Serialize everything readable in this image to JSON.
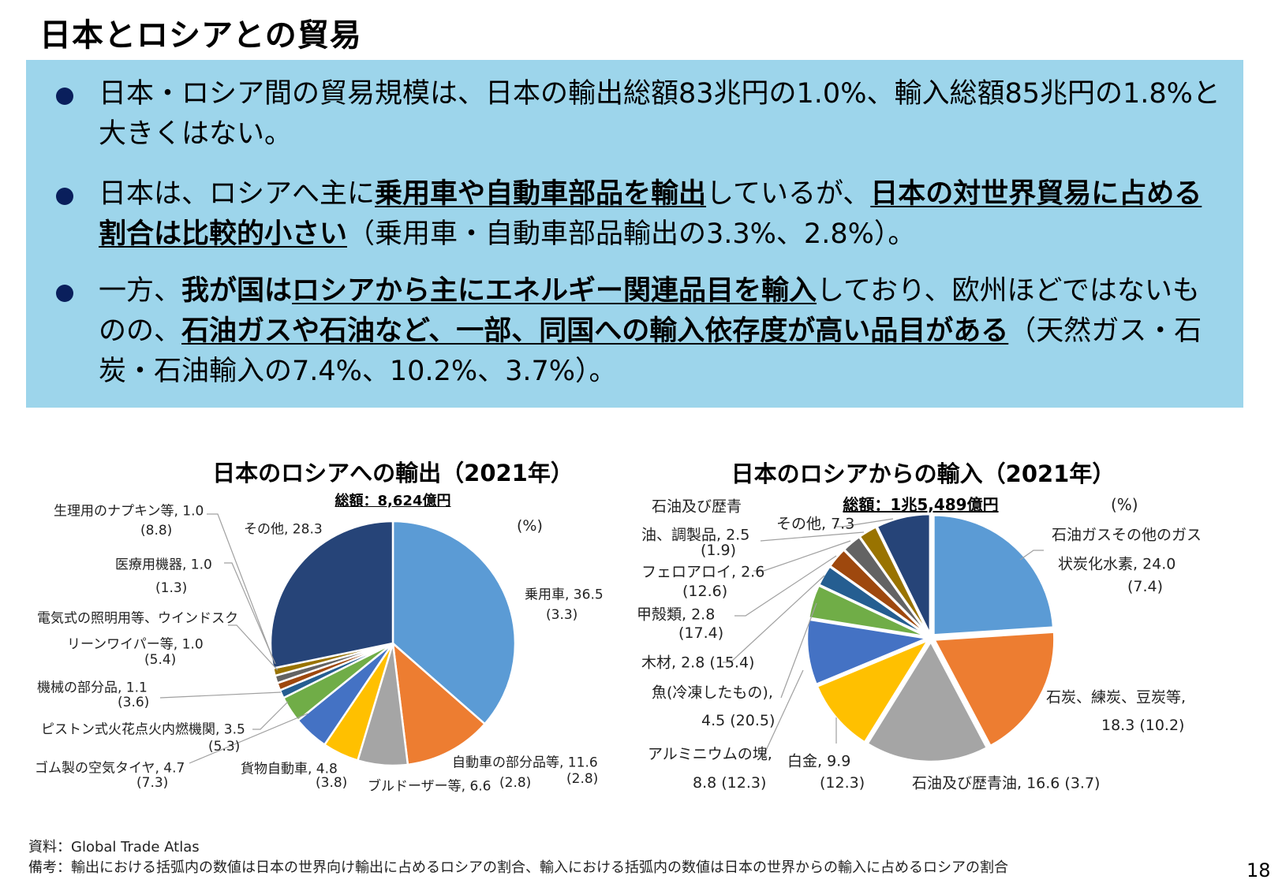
{
  "page_title": "日本とロシアとの貿易",
  "page_number": "18",
  "bullets": [
    {
      "segments": [
        {
          "text": "日本・ロシア間の貿易規模は、日本の輸出総額83兆円の1.0%、輸入総額85兆円の1.8%と大きくはない。",
          "bold": false,
          "underline": false
        }
      ]
    },
    {
      "segments": [
        {
          "text": "日本は、ロシアへ主に",
          "bold": false,
          "underline": false
        },
        {
          "text": "乗用車や自動車部品を輸出",
          "bold": true,
          "underline": true
        },
        {
          "text": "しているが、",
          "bold": false,
          "underline": false
        },
        {
          "text": "日本の対世界貿易に占める割合は比較的小さい",
          "bold": true,
          "underline": true
        },
        {
          "text": "（乗用車・自動車部品輸出の3.3%、2.8%）。",
          "bold": false,
          "underline": false
        }
      ]
    },
    {
      "segments": [
        {
          "text": "一方、",
          "bold": false,
          "underline": false
        },
        {
          "text": "我が国は",
          "bold": true,
          "underline": false
        },
        {
          "text": "ロシアから主にエネルギー関連品目を輸入",
          "bold": true,
          "underline": true
        },
        {
          "text": "しており、欧州ほどではないものの、",
          "bold": false,
          "underline": false
        },
        {
          "text": "石油ガスや石油など、一部、同国への輸入依存度が高い品目がある",
          "bold": true,
          "underline": true
        },
        {
          "text": "（天然ガス・石炭・石油輸入の7.4%、10.2%、3.7%）。",
          "bold": false,
          "underline": false
        }
      ]
    }
  ],
  "colors": {
    "box_bg": "#9dd5eb",
    "bullet": "#0a1f5c"
  },
  "chart_data": [
    {
      "type": "pie",
      "title": "日本のロシアへの輸出（2021年）",
      "subtitle": "総額：8,624億円",
      "unit_label": "(%)",
      "slices": [
        {
          "label": "乗用車, 36.5",
          "value": 36.5,
          "share": "(3.3)",
          "color": "#5b9bd5"
        },
        {
          "label": "自動車の部分品等, 11.6",
          "value": 11.6,
          "share": "(2.8)",
          "color": "#ed7d31"
        },
        {
          "label": "ブルドーザー等, 6.6",
          "value": 6.6,
          "share": "(2.8)",
          "color": "#a5a5a5"
        },
        {
          "label": "貨物自動車, 4.8",
          "value": 4.8,
          "share": "(3.8)",
          "color": "#ffc000"
        },
        {
          "label": "ゴム製の空気タイヤ, 4.7",
          "value": 4.7,
          "share": "(7.3)",
          "color": "#4472c4"
        },
        {
          "label": "ピストン式火花点火内燃機関, 3.5",
          "value": 3.5,
          "share": "(5.3)",
          "color": "#70ad47"
        },
        {
          "label": "機械の部分品, 1.1",
          "value": 1.1,
          "share": "(3.6)",
          "color": "#255e91"
        },
        {
          "label": "電気式の照明用等、ウインドスクリーンワイパー等, 1.0",
          "label_lines": [
            "電気式の照明用等、ウインドスク",
            "リーンワイパー等, 1.0"
          ],
          "value": 1.0,
          "share": "(5.4)",
          "color": "#9e480e"
        },
        {
          "label": "医療用機器, 1.0",
          "value": 1.0,
          "share": "(1.3)",
          "color": "#636363"
        },
        {
          "label": "生理用のナプキン等, 1.0",
          "value": 1.0,
          "share": "(8.8)",
          "color": "#997300"
        },
        {
          "label": "その他, 28.3",
          "value": 28.3,
          "share": "",
          "color": "#264478"
        }
      ]
    },
    {
      "type": "pie",
      "title": "日本のロシアからの輸入（2021年）",
      "subtitle": "総額：1兆5,489億円",
      "unit_label": "(%)",
      "slices": [
        {
          "label": "石油ガスその他のガス状炭化水素, 24.0",
          "label_lines": [
            "石油ガスその他のガス",
            "状炭化水素, 24.0"
          ],
          "value": 24.0,
          "share": "(7.4)",
          "color": "#5b9bd5"
        },
        {
          "label": "石炭、練炭、豆炭等, 18.3",
          "label_lines": [
            "石炭、練炭、豆炭等,",
            "18.3 (10.2)"
          ],
          "value": 18.3,
          "share": "(10.2)",
          "color": "#ed7d31"
        },
        {
          "label": "石油及び歴青油, 16.6",
          "label_lines": [
            "石油及び歴青油, 16.6  (3.7)"
          ],
          "value": 16.6,
          "share": "(3.7)",
          "color": "#a5a5a5"
        },
        {
          "label": "白金, 9.9",
          "value": 9.9,
          "share": "(12.3)",
          "color": "#ffc000"
        },
        {
          "label": "アルミニウムの塊, 8.8",
          "label_lines": [
            "アルミニウムの塊,",
            "8.8 (12.3)"
          ],
          "value": 8.8,
          "share": "(12.3)",
          "color": "#4472c4"
        },
        {
          "label": "魚(冷凍したもの), 4.5",
          "label_lines": [
            "魚(冷凍したもの),",
            "4.5 (20.5)"
          ],
          "value": 4.5,
          "share": "(20.5)",
          "color": "#70ad47"
        },
        {
          "label": "木材, 2.8",
          "label_lines": [
            "木材, 2.8  (15.4)"
          ],
          "value": 2.8,
          "share": "(15.4)",
          "color": "#255e91"
        },
        {
          "label": "甲殻類, 2.8",
          "value": 2.8,
          "share": "(17.4)",
          "color": "#9e480e"
        },
        {
          "label": "フェロアロイ, 2.6",
          "value": 2.6,
          "share": "(12.6)",
          "color": "#636363"
        },
        {
          "label": "石油及び歴青油、調製品, 2.5",
          "label_lines": [
            "石油及び歴青",
            "油、調製品, 2.5"
          ],
          "value": 2.5,
          "share": "(1.9)",
          "color": "#997300"
        },
        {
          "label": "その他, 7.3",
          "value": 7.3,
          "share": "",
          "color": "#264478"
        }
      ]
    }
  ],
  "footer": {
    "source": "資料：Global Trade Atlas",
    "note": "備考：輸出における括弧内の数値は日本の世界向け輸出に占めるロシアの割合、輸入における括弧内の数値は日本の世界からの輸入に占めるロシアの割合"
  }
}
